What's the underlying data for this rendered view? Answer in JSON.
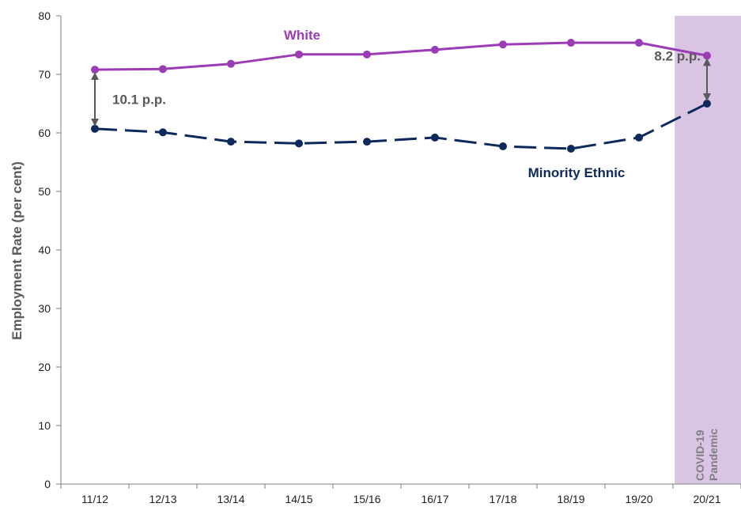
{
  "chart_data": {
    "type": "line",
    "categories": [
      "11/12",
      "12/13",
      "13/14",
      "14/15",
      "15/16",
      "16/17",
      "17/18",
      "18/19",
      "19/20",
      "20/21"
    ],
    "series": [
      {
        "name": "White",
        "values": [
          70.8,
          70.9,
          71.8,
          73.4,
          73.4,
          74.2,
          75.1,
          75.4,
          75.4,
          73.2
        ],
        "color": "#9C3CB4",
        "dash": "solid"
      },
      {
        "name": "Minority Ethnic",
        "values": [
          60.7,
          60.1,
          58.5,
          58.2,
          58.5,
          59.2,
          57.7,
          57.3,
          59.2,
          65.0
        ],
        "color": "#0E2A5C",
        "dash": "dashed"
      }
    ],
    "ylabel": "Employment Rate (per cent)",
    "xlabel": "",
    "ylim": [
      0,
      80
    ],
    "yticks": [
      "0",
      "10",
      "20",
      "30",
      "40",
      "50",
      "60",
      "70",
      "80"
    ],
    "grid": false,
    "annotations": [
      {
        "text": "10.1 p.p.",
        "category": "11/12",
        "from": 60.7,
        "to": 70.8
      },
      {
        "text": "8.2 p.p.",
        "category": "20/21",
        "from": 65.0,
        "to": 73.2
      }
    ],
    "highlight_band": {
      "category": "20/21",
      "label_lines": [
        "COVID-19",
        "Pandemic"
      ],
      "color": "#D9C4E4"
    }
  }
}
